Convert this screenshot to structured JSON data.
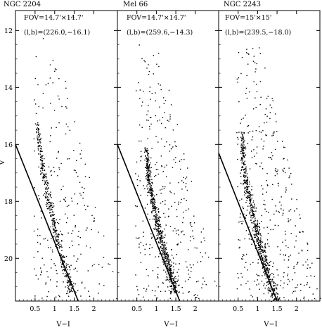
{
  "chart_data": {
    "type": "scatter",
    "shared_ylabel": "V",
    "ylim": [
      21.5,
      11.3
    ],
    "y_ticks": [
      12,
      14,
      16,
      18,
      20
    ],
    "x_ticks": [
      0.5,
      1,
      1.5,
      2
    ],
    "panels": [
      {
        "title": "NGC 2204",
        "fov": "FOV=14.7'×14.7'",
        "lb": "(l,b)=(226.0,−16.1)",
        "xlabel": "V−I",
        "xlim": [
          0.0,
          2.6
        ],
        "fit_line": [
          {
            "x": 0.0,
            "y": 16.0
          },
          {
            "x": 1.6,
            "y": 21.5
          }
        ],
        "sequence_ridge": [
          {
            "x": 0.55,
            "y": 15.2
          },
          {
            "x": 0.6,
            "y": 16.0
          },
          {
            "x": 0.7,
            "y": 17.0
          },
          {
            "x": 0.85,
            "y": 18.0
          },
          {
            "x": 1.0,
            "y": 19.0
          },
          {
            "x": 1.2,
            "y": 20.0
          },
          {
            "x": 1.4,
            "y": 21.0
          }
        ],
        "point_count": 650
      },
      {
        "title": "Mel 66",
        "fov": "FOV=14.7'×14.7'",
        "lb": "(l,b)=(259.6,−14.3)",
        "xlabel": "V−I",
        "xlim": [
          0.0,
          2.6
        ],
        "fit_line": [
          {
            "x": 0.0,
            "y": 16.0
          },
          {
            "x": 1.6,
            "y": 21.5
          }
        ],
        "sequence_ridge": [
          {
            "x": 0.72,
            "y": 16.0
          },
          {
            "x": 0.78,
            "y": 17.0
          },
          {
            "x": 0.9,
            "y": 18.0
          },
          {
            "x": 1.05,
            "y": 19.0
          },
          {
            "x": 1.25,
            "y": 20.0
          },
          {
            "x": 1.45,
            "y": 21.0
          }
        ],
        "point_count": 950
      },
      {
        "title": "NGC 2243",
        "fov": "FOV=15'×15'",
        "lb": "(l,b)=(239.5,−18.0)",
        "xlabel": "V−I",
        "xlim": [
          0.0,
          2.6
        ],
        "fit_line": [
          {
            "x": 0.0,
            "y": 16.3
          },
          {
            "x": 1.5,
            "y": 21.5
          }
        ],
        "sequence_ridge": [
          {
            "x": 0.6,
            "y": 15.5
          },
          {
            "x": 0.62,
            "y": 16.5
          },
          {
            "x": 0.72,
            "y": 17.5
          },
          {
            "x": 0.88,
            "y": 18.5
          },
          {
            "x": 1.05,
            "y": 19.5
          },
          {
            "x": 1.25,
            "y": 20.5
          },
          {
            "x": 1.45,
            "y": 21.4
          }
        ],
        "point_count": 1000
      }
    ]
  }
}
